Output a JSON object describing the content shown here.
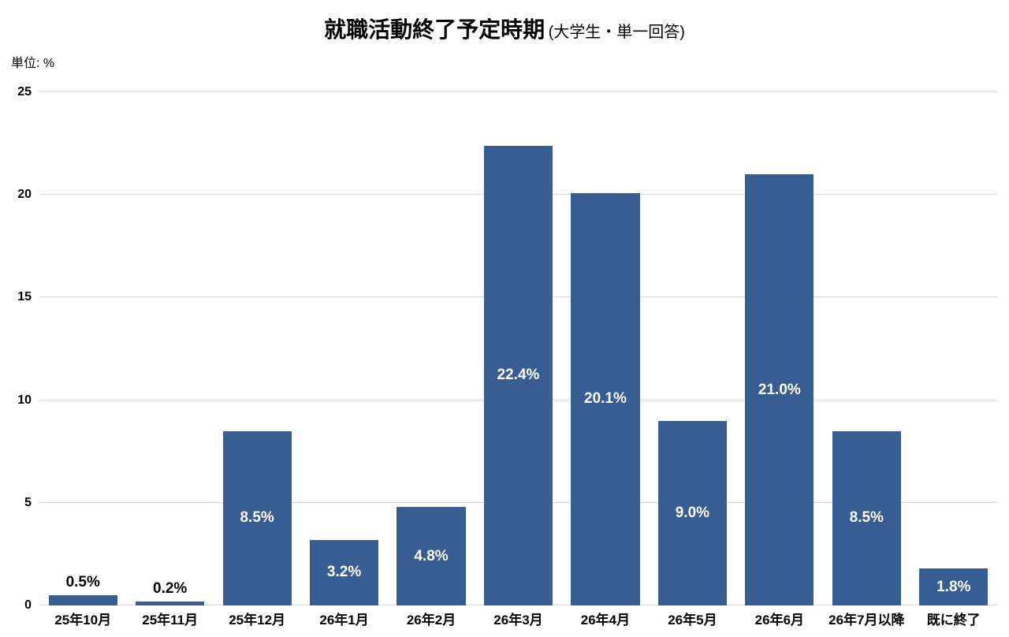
{
  "header": {
    "title": "就職活動終了予定時期",
    "subtitle": "(大学生・単一回答)",
    "unit_label": "単位: %"
  },
  "chart_data": {
    "type": "bar",
    "title": "就職活動終了予定時期 (大学生・単一回答)",
    "xlabel": "",
    "ylabel": "単位: %",
    "ylim": [
      0,
      25
    ],
    "yticks": [
      0,
      5,
      10,
      15,
      20,
      25
    ],
    "grid": true,
    "legend": "none",
    "categories": [
      "25年10月",
      "25年11月",
      "25年12月",
      "26年1月",
      "26年2月",
      "26年3月",
      "26年4月",
      "26年5月",
      "26年6月",
      "26年7月以降",
      "既に終了"
    ],
    "values": [
      0.5,
      0.2,
      8.5,
      3.2,
      4.8,
      22.4,
      20.1,
      9.0,
      21.0,
      8.5,
      1.8
    ],
    "data_labels": [
      "0.5%",
      "0.2%",
      "8.5%",
      "3.2%",
      "4.8%",
      "22.4%",
      "20.1%",
      "9.0%",
      "21.0%",
      "8.5%",
      "1.8%"
    ],
    "colors": {
      "bar": "#375d92",
      "label_inside": "#ffffff",
      "label_above": "#000000",
      "gridline": "#d8d8d8"
    }
  }
}
